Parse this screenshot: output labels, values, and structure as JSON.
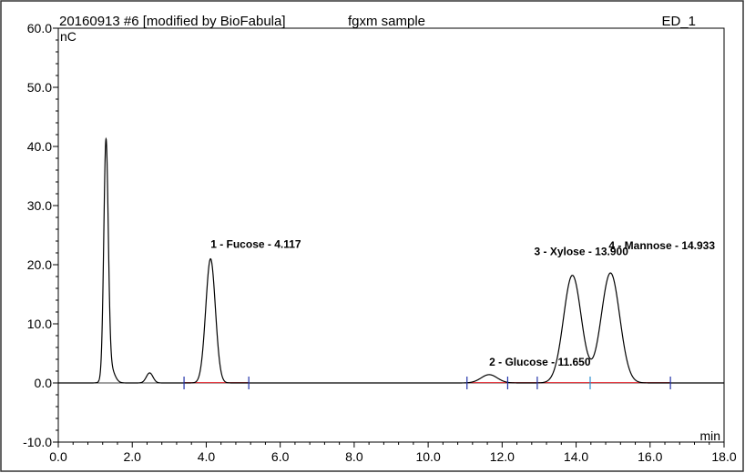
{
  "header": {
    "run": "20160913 #6 [modified by BioFabula]",
    "sample": "fgxm sample",
    "detector": "ED_1"
  },
  "chart_data": {
    "type": "line",
    "xlabel": "min",
    "ylabel": "nC",
    "xlim": [
      0,
      18
    ],
    "ylim": [
      -10,
      60
    ],
    "x_ticks": [
      "0.0",
      "2.0",
      "4.0",
      "6.0",
      "8.0",
      "10.0",
      "12.0",
      "14.0",
      "16.0",
      "18.0"
    ],
    "y_ticks": [
      "-10.0",
      "0.0",
      "10.0",
      "20.0",
      "30.0",
      "40.0",
      "50.0",
      "60.0"
    ],
    "grid": false,
    "legend": "none",
    "colors": {
      "trace": "#000000",
      "baseline": "#e0202a",
      "marker": "#2233aa",
      "marker_alt": "#2a8fd0",
      "frame": "#000000"
    },
    "series": [
      {
        "peaks": [
          {
            "rt": 1.29,
            "height": 39.0,
            "width": 0.06
          },
          {
            "rt": 1.38,
            "height": 3.0,
            "width": 0.12
          },
          {
            "rt": 2.47,
            "height": 1.7,
            "width": 0.09
          },
          {
            "rt": 4.117,
            "height": 21.0,
            "width": 0.13
          },
          {
            "rt": 11.65,
            "height": 1.4,
            "width": 0.22
          },
          {
            "rt": 13.9,
            "height": 18.2,
            "width": 0.24
          },
          {
            "rt": 14.93,
            "height": 18.6,
            "width": 0.25
          }
        ]
      }
    ],
    "peak_labels": [
      {
        "text": "1 - Fucose - 4.117",
        "x": 4.117,
        "y": 21.0
      },
      {
        "text": "2 - Glucose - 11.650",
        "x": 11.65,
        "y": 1.4
      },
      {
        "text": "3 - Xylose - 13.900",
        "x": 13.9,
        "y": 18.2
      },
      {
        "text": "4 - Mannose - 14.933",
        "x": 14.93,
        "y": 18.6
      }
    ],
    "integration_markers": [
      3.4,
      5.15,
      11.05,
      12.15,
      12.95,
      14.38,
      16.55
    ],
    "baseline_segments": [
      [
        3.4,
        5.15
      ],
      [
        11.05,
        16.55
      ]
    ]
  }
}
